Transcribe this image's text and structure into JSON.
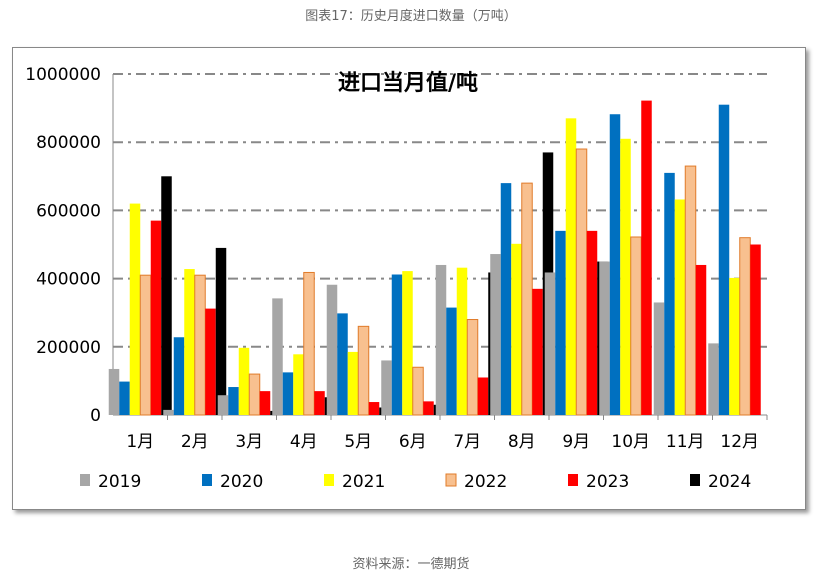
{
  "caption": "图表17：历史月度进口数量（万吨）",
  "source": "资料来源：一德期货",
  "chart_data": {
    "type": "bar",
    "title": "进口当月值/吨",
    "xlabel": "",
    "ylabel": "",
    "ylim": [
      0,
      1000000
    ],
    "yticks": [
      "0",
      "200000",
      "400000",
      "600000",
      "800000",
      "1000000"
    ],
    "grid": true,
    "legend_position": "bottom",
    "categories": [
      "1月",
      "2月",
      "3月",
      "4月",
      "5月",
      "6月",
      "7月",
      "8月",
      "9月",
      "10月",
      "11月",
      "12月"
    ],
    "series": [
      {
        "name": "2019",
        "color": "#a6a6a6",
        "values": [
          135000,
          15000,
          58000,
          342000,
          382000,
          160000,
          440000,
          472000,
          418000,
          450000,
          330000,
          210000
        ]
      },
      {
        "name": "2020",
        "color": "#0070c0",
        "values": [
          98000,
          228000,
          82000,
          125000,
          298000,
          412000,
          315000,
          680000,
          540000,
          882000,
          710000,
          910000
        ]
      },
      {
        "name": "2021",
        "color": "#ffff00",
        "values": [
          620000,
          428000,
          197000,
          178000,
          185000,
          422000,
          432000,
          502000,
          870000,
          810000,
          632000,
          402000
        ]
      },
      {
        "name": "2022",
        "color": "#f8c08f",
        "values": [
          410000,
          410000,
          120000,
          418000,
          260000,
          140000,
          280000,
          680000,
          780000,
          522000,
          730000,
          520000
        ]
      },
      {
        "name": "2023",
        "color": "#ff0000",
        "values": [
          570000,
          312000,
          70000,
          70000,
          38000,
          40000,
          110000,
          370000,
          540000,
          922000,
          440000,
          500000
        ]
      },
      {
        "name": "2024",
        "color": "#000000",
        "values": [
          700000,
          490000,
          12000,
          52000,
          22000,
          30000,
          418000,
          770000,
          450000,
          null,
          null,
          null
        ]
      }
    ]
  }
}
